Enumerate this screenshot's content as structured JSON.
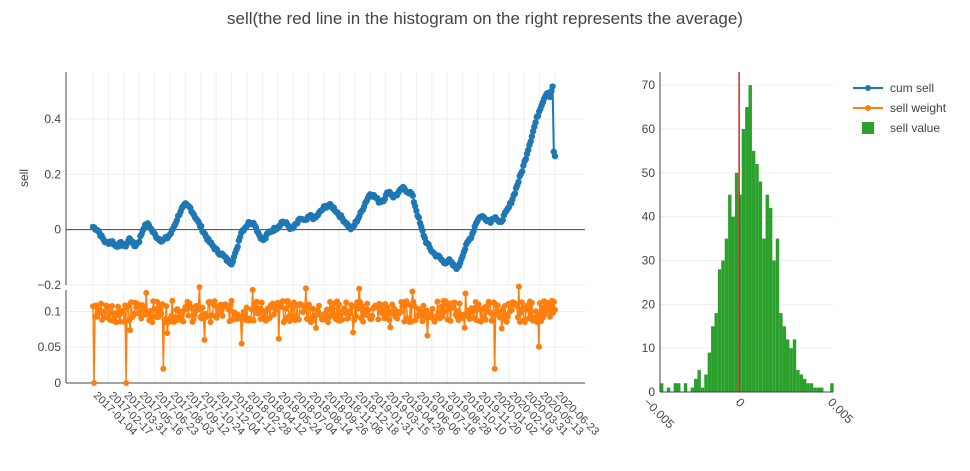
{
  "chart_data": [
    {
      "type": "scatter",
      "title": "sell(the red line in the histogram on the right represents the average)",
      "ylabel": "sell",
      "ylim": [
        -0.2,
        0.57
      ],
      "yticks": [
        {
          "value": -0.2,
          "label": "−0.2"
        },
        {
          "value": 0,
          "label": "0"
        },
        {
          "value": 0.2,
          "label": "0.2"
        },
        {
          "value": 0.4,
          "label": "0.4"
        }
      ],
      "series": [
        {
          "name": "cum sell",
          "color": "#1f77b4",
          "mode": "lines+markers",
          "points": [
            [
              0,
              0.01
            ],
            [
              0.01,
              0.0
            ],
            [
              0.02,
              -0.03
            ],
            [
              0.03,
              -0.05
            ],
            [
              0.04,
              -0.04
            ],
            [
              0.05,
              -0.06
            ],
            [
              0.06,
              -0.05
            ],
            [
              0.07,
              -0.06
            ],
            [
              0.08,
              -0.03
            ],
            [
              0.09,
              -0.06
            ],
            [
              0.1,
              -0.04
            ],
            [
              0.11,
              0.01
            ],
            [
              0.12,
              0.02
            ],
            [
              0.13,
              -0.01
            ],
            [
              0.14,
              -0.03
            ],
            [
              0.15,
              -0.04
            ],
            [
              0.16,
              -0.03
            ],
            [
              0.17,
              -0.01
            ],
            [
              0.18,
              0.03
            ],
            [
              0.19,
              0.07
            ],
            [
              0.2,
              0.09
            ],
            [
              0.21,
              0.08
            ],
            [
              0.22,
              0.05
            ],
            [
              0.23,
              0.02
            ],
            [
              0.24,
              -0.01
            ],
            [
              0.25,
              -0.04
            ],
            [
              0.26,
              -0.06
            ],
            [
              0.27,
              -0.08
            ],
            [
              0.28,
              -0.09
            ],
            [
              0.29,
              -0.11
            ],
            [
              0.3,
              -0.12
            ],
            [
              0.31,
              -0.08
            ],
            [
              0.32,
              -0.01
            ],
            [
              0.33,
              0.01
            ],
            [
              0.34,
              0.03
            ],
            [
              0.35,
              0.02
            ],
            [
              0.36,
              -0.02
            ],
            [
              0.37,
              -0.04
            ],
            [
              0.38,
              -0.01
            ],
            [
              0.39,
              0.0
            ],
            [
              0.4,
              0.01
            ],
            [
              0.41,
              0.03
            ],
            [
              0.42,
              0.02
            ],
            [
              0.43,
              0.0
            ],
            [
              0.44,
              0.02
            ],
            [
              0.45,
              0.04
            ],
            [
              0.46,
              0.03
            ],
            [
              0.47,
              0.05
            ],
            [
              0.48,
              0.04
            ],
            [
              0.49,
              0.06
            ],
            [
              0.5,
              0.08
            ],
            [
              0.51,
              0.09
            ],
            [
              0.52,
              0.08
            ],
            [
              0.53,
              0.06
            ],
            [
              0.54,
              0.04
            ],
            [
              0.55,
              0.02
            ],
            [
              0.56,
              0.0
            ],
            [
              0.57,
              0.03
            ],
            [
              0.58,
              0.06
            ],
            [
              0.59,
              0.1
            ],
            [
              0.6,
              0.13
            ],
            [
              0.61,
              0.12
            ],
            [
              0.62,
              0.1
            ],
            [
              0.63,
              0.11
            ],
            [
              0.64,
              0.14
            ],
            [
              0.65,
              0.12
            ],
            [
              0.66,
              0.13
            ],
            [
              0.67,
              0.15
            ],
            [
              0.68,
              0.14
            ],
            [
              0.69,
              0.13
            ],
            [
              0.7,
              0.07
            ],
            [
              0.71,
              0.01
            ],
            [
              0.72,
              -0.04
            ],
            [
              0.73,
              -0.07
            ],
            [
              0.74,
              -0.09
            ],
            [
              0.75,
              -0.1
            ],
            [
              0.76,
              -0.12
            ],
            [
              0.77,
              -0.11
            ],
            [
              0.78,
              -0.13
            ],
            [
              0.79,
              -0.14
            ],
            [
              0.8,
              -0.09
            ],
            [
              0.81,
              -0.05
            ],
            [
              0.82,
              -0.02
            ],
            [
              0.83,
              0.03
            ],
            [
              0.84,
              0.05
            ],
            [
              0.85,
              0.04
            ],
            [
              0.86,
              0.03
            ],
            [
              0.87,
              0.05
            ],
            [
              0.88,
              0.02
            ],
            [
              0.89,
              0.05
            ],
            [
              0.9,
              0.08
            ],
            [
              0.91,
              0.12
            ],
            [
              0.92,
              0.17
            ],
            [
              0.93,
              0.22
            ],
            [
              0.94,
              0.28
            ],
            [
              0.95,
              0.34
            ],
            [
              0.96,
              0.4
            ],
            [
              0.97,
              0.45
            ],
            [
              0.98,
              0.49
            ],
            [
              0.985,
              0.5
            ],
            [
              0.99,
              0.48
            ],
            [
              0.995,
              0.52
            ],
            [
              1.0,
              0.5
            ]
          ]
        },
        {
          "name": "sell weight",
          "color": "#ff7f0e",
          "mode": "lines+markers",
          "ylim": [
            0,
            0.13
          ],
          "yticks": [
            {
              "value": 0,
              "label": "0"
            },
            {
              "value": 0.05,
              "label": "0.05"
            },
            {
              "value": 0.1,
              "label": "0.1"
            }
          ],
          "base": 0.1,
          "spikes": [
            0.0,
            0.05,
            0.13,
            0.22,
            0.37,
            0.39,
            0.45,
            0.53,
            0.6,
            0.68,
            0.74,
            0.82,
            0.87,
            0.91,
            0.97
          ]
        }
      ],
      "x_tick_labels": [
        "2017-01-04",
        "2017-02-17",
        "2017-03-31",
        "2017-05-16",
        "2017-06-23",
        "2017-08-03",
        "2017-09-12",
        "2017-10-24",
        "2017-12-04",
        "2018-01-12",
        "2018-02-28",
        "2018-04-12",
        "2018-05-24",
        "2018-07-04",
        "2018-08-14",
        "2018-09-26",
        "2018-11-08",
        "2018-12-18",
        "2019-01-31",
        "2019-03-15",
        "2019-04-26",
        "2019-06-06",
        "2019-07-18",
        "2019-08-28",
        "2019-10-10",
        "2019-11-20",
        "2020-01-02",
        "2020-02-18",
        "2020-03-31",
        "2020-05-13",
        "2020-06-23"
      ]
    },
    {
      "type": "bar",
      "name": "sell value",
      "color": "#2ca02c",
      "xticks": [
        {
          "value": -0.005,
          "label": "−0.005"
        },
        {
          "value": 0,
          "label": "0"
        },
        {
          "value": 0.005,
          "label": "0.005"
        }
      ],
      "yticks": [
        {
          "value": 0,
          "label": "0"
        },
        {
          "value": 10,
          "label": "10"
        },
        {
          "value": 20,
          "label": "20"
        },
        {
          "value": 30,
          "label": "30"
        },
        {
          "value": 40,
          "label": "40"
        },
        {
          "value": 50,
          "label": "50"
        },
        {
          "value": 60,
          "label": "60"
        },
        {
          "value": 70,
          "label": "70"
        }
      ],
      "xlim": [
        -0.0043,
        0.0051
      ],
      "ylim": [
        0,
        73
      ],
      "mean": 0,
      "mean_color": "#d62728",
      "bin_start": -0.0043,
      "bin_width": 0.000185,
      "counts": [
        2,
        0,
        1,
        0,
        2,
        2,
        0,
        2,
        0,
        1,
        3,
        5,
        1,
        4,
        9,
        15,
        18,
        28,
        30,
        35,
        45,
        40,
        50,
        45,
        60,
        65,
        70,
        55,
        52,
        48,
        35,
        45,
        42,
        30,
        35,
        18,
        15,
        12,
        10,
        12,
        5,
        4,
        3,
        2,
        2,
        1,
        1,
        1,
        0,
        0,
        2
      ]
    }
  ],
  "legend": [
    {
      "label": "cum sell",
      "type": "line",
      "color": "#1f77b4"
    },
    {
      "label": "sell weight",
      "type": "line",
      "color": "#ff7f0e"
    },
    {
      "label": "sell value",
      "type": "box",
      "color": "#2ca02c"
    }
  ]
}
